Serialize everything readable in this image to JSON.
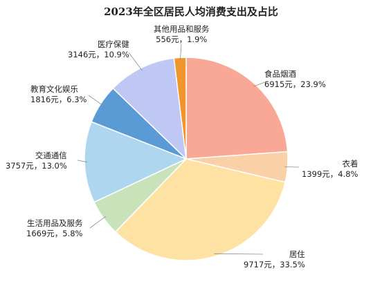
{
  "chart_data": {
    "type": "pie",
    "title": "2023年全区居民人均消费支出及占比",
    "slices": [
      {
        "name": "食品烟酒",
        "value": 6915,
        "percent": "23.9%",
        "value_label": "6915元，23.9%",
        "color": "#F9A896"
      },
      {
        "name": "衣着",
        "value": 1399,
        "percent": "4.8%",
        "value_label": "1399元，4.8%",
        "color": "#FAD0A6"
      },
      {
        "name": "居住",
        "value": 9717,
        "percent": "33.5%",
        "value_label": "9717元，33.5%",
        "color": "#FDE2A4"
      },
      {
        "name": "生活用品及服务",
        "value": 1669,
        "percent": "5.8%",
        "value_label": "1669元，5.8%",
        "color": "#C8E3BA"
      },
      {
        "name": "交通通信",
        "value": 3757,
        "percent": "13.0%",
        "value_label": "3757元，13.0%",
        "color": "#AED6EF"
      },
      {
        "name": "教育文化娱乐",
        "value": 1816,
        "percent": "6.3%",
        "value_label": "1816元，6.3%",
        "color": "#5B9BD5"
      },
      {
        "name": "医疗保健",
        "value": 3146,
        "percent": "10.9%",
        "value_label": "3146元，10.9%",
        "color": "#BFC8F5"
      },
      {
        "name": "其他用品和服务",
        "value": 556,
        "percent": "1.9%",
        "value_label": "556元，1.9%",
        "color": "#F0962C"
      }
    ]
  }
}
